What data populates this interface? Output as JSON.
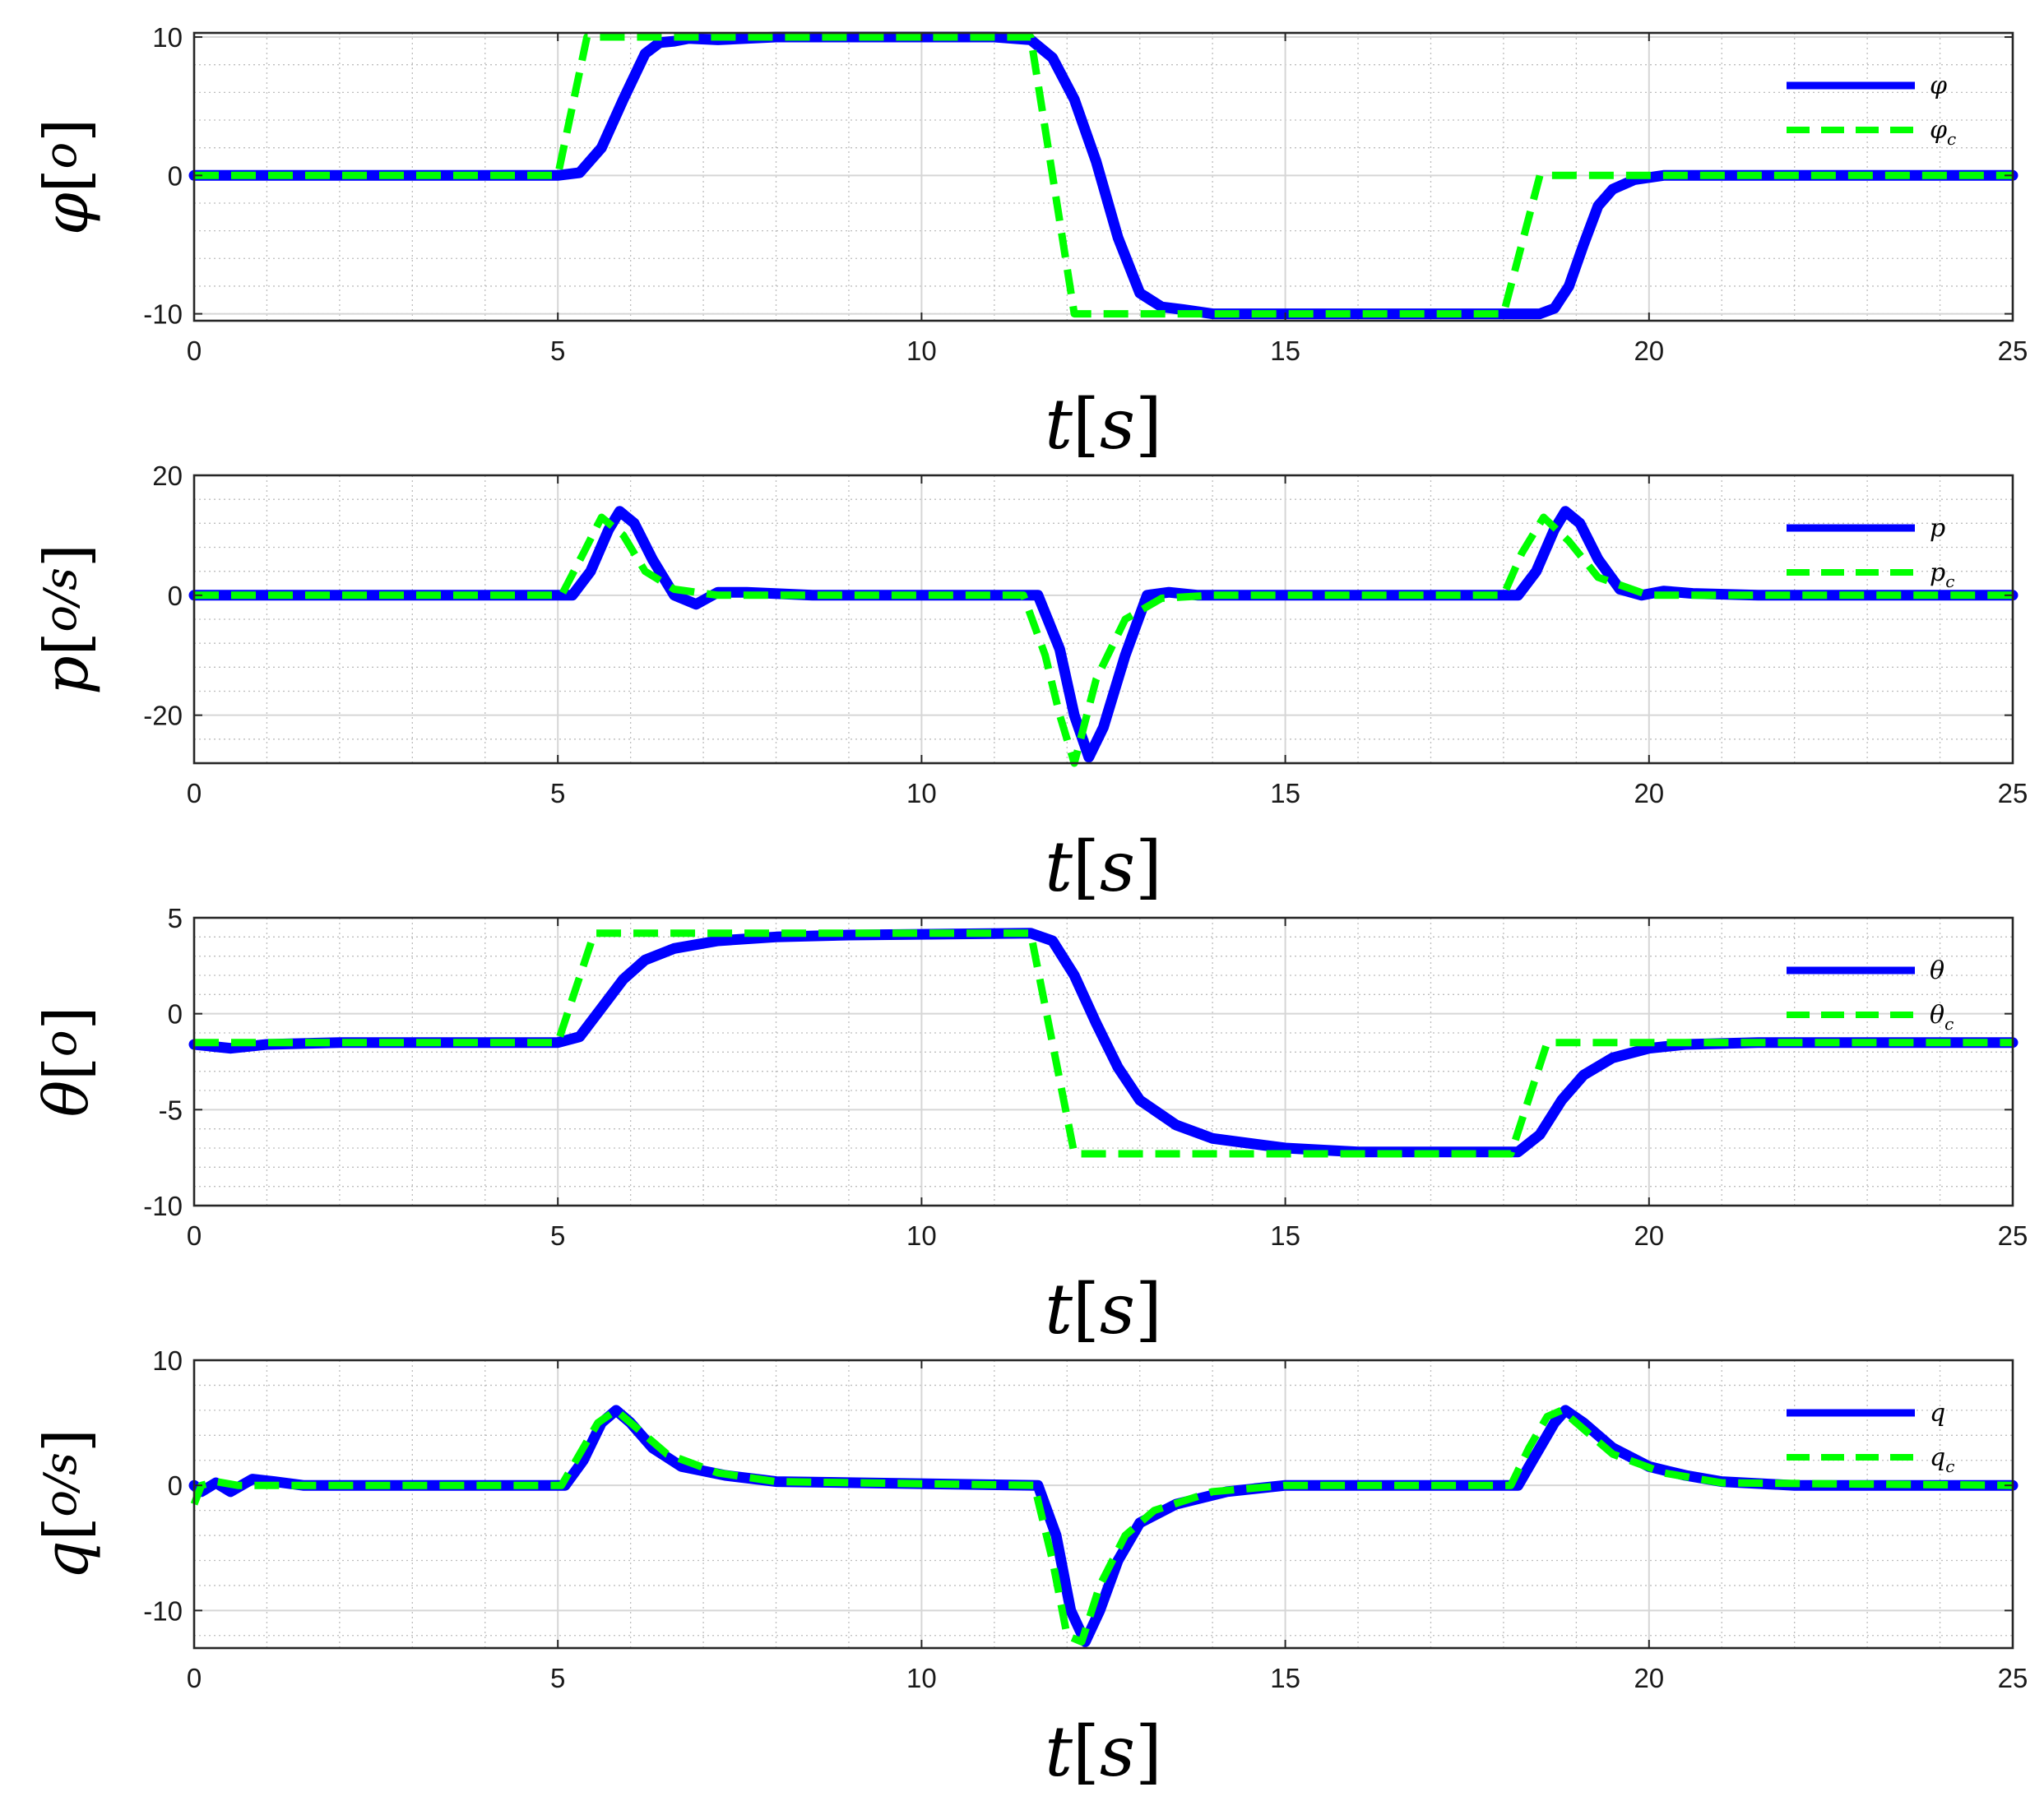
{
  "chart_data": [
    {
      "type": "line",
      "x_label": "t",
      "x_unit": "s",
      "x_label_text": "t[s]",
      "y_label": "φ",
      "y_unit": "o",
      "y_label_text": "φ[o]",
      "xlim": [
        0,
        25
      ],
      "ylim": [
        -10.5,
        10.3
      ],
      "x_ticks": [
        0,
        5,
        10,
        15,
        20,
        25
      ],
      "x_tick_labels": [
        "0",
        "5",
        "10",
        "15",
        "20",
        "25"
      ],
      "y_ticks": [
        10,
        0,
        -10
      ],
      "y_tick_labels": [
        "10",
        "0",
        "-10"
      ],
      "grid": true,
      "minor_grid": true,
      "legend_position": "top-right",
      "series": [
        {
          "name": "φ",
          "name_sub": "",
          "color": "#0000ff",
          "style": "solid",
          "x": [
            0,
            5,
            5.3,
            5.6,
            5.9,
            6.2,
            6.4,
            6.6,
            6.8,
            7.2,
            8,
            11,
            11.5,
            11.8,
            12.1,
            12.4,
            12.7,
            13,
            13.3,
            13.6,
            14,
            16,
            18.5,
            18.7,
            18.9,
            19.1,
            19.3,
            19.5,
            19.8,
            20.2,
            21,
            25
          ],
          "y": [
            0,
            0,
            0.2,
            2,
            5.5,
            8.8,
            9.6,
            9.7,
            9.9,
            9.8,
            10,
            10,
            9.8,
            8.5,
            5.5,
            1,
            -4.5,
            -8.5,
            -9.5,
            -9.7,
            -10,
            -10,
            -10,
            -9.6,
            -8,
            -5,
            -2.2,
            -1,
            -0.3,
            0,
            0,
            0
          ]
        },
        {
          "name": "φ",
          "name_sub": "c",
          "color": "#00ff00",
          "style": "dashed",
          "x": [
            0,
            5,
            5.4,
            11.5,
            12.1,
            18,
            18.5,
            25
          ],
          "y": [
            0,
            0,
            10,
            10,
            -10,
            -10,
            0,
            0
          ]
        }
      ]
    },
    {
      "type": "line",
      "x_label": "t",
      "x_unit": "s",
      "x_label_text": "t[s]",
      "y_label": "p",
      "y_unit": "o/s",
      "y_label_text": "p[o/s]",
      "xlim": [
        0,
        25
      ],
      "ylim": [
        -28,
        20
      ],
      "x_ticks": [
        0,
        5,
        10,
        15,
        20,
        25
      ],
      "x_tick_labels": [
        "0",
        "5",
        "10",
        "15",
        "20",
        "25"
      ],
      "y_ticks": [
        20,
        0,
        -20
      ],
      "y_tick_labels": [
        "20",
        "0",
        "-20"
      ],
      "grid": true,
      "minor_grid": true,
      "legend_position": "top-right",
      "series": [
        {
          "name": "p",
          "name_sub": "",
          "color": "#0000ff",
          "style": "solid",
          "x": [
            0,
            5.2,
            5.45,
            5.7,
            5.85,
            6.05,
            6.3,
            6.6,
            6.9,
            7.2,
            7.6,
            8.5,
            11.6,
            11.9,
            12.1,
            12.3,
            12.5,
            12.8,
            13.1,
            13.4,
            13.8,
            14.5,
            18.2,
            18.45,
            18.7,
            18.85,
            19.05,
            19.3,
            19.6,
            19.9,
            20.2,
            20.6,
            21.5,
            25
          ],
          "y": [
            0,
            0,
            4,
            11,
            14,
            12,
            6,
            0,
            -1.5,
            0.5,
            0.5,
            0,
            0,
            -9,
            -20,
            -27,
            -22,
            -10,
            0,
            0.5,
            0,
            0,
            0,
            4,
            11,
            14,
            12,
            6,
            1,
            0,
            0.7,
            0.3,
            0,
            0
          ]
        },
        {
          "name": "p",
          "name_sub": "c",
          "color": "#00ff00",
          "style": "dashed",
          "x": [
            0,
            5.05,
            5.35,
            5.6,
            5.9,
            6.2,
            6.6,
            7.2,
            11.4,
            11.7,
            11.9,
            12.1,
            12.4,
            12.8,
            13.3,
            14,
            18,
            18.25,
            18.55,
            18.9,
            19.3,
            20,
            25
          ],
          "y": [
            0,
            0,
            7,
            13,
            10,
            4,
            1,
            0,
            0,
            -10,
            -20,
            -28,
            -14,
            -4,
            -0.5,
            0,
            0,
            7,
            13,
            9,
            3,
            0,
            0
          ]
        }
      ]
    },
    {
      "type": "line",
      "x_label": "t",
      "x_unit": "s",
      "x_label_text": "t[s]",
      "y_label": "θ",
      "y_unit": "o",
      "y_label_text": "θ[o]",
      "xlim": [
        0,
        25
      ],
      "ylim": [
        -10,
        5
      ],
      "x_ticks": [
        0,
        5,
        10,
        15,
        20,
        25
      ],
      "x_tick_labels": [
        "0",
        "5",
        "10",
        "15",
        "20",
        "25"
      ],
      "y_ticks": [
        5,
        0,
        -5,
        -10
      ],
      "y_tick_labels": [
        "5",
        "0",
        "-5",
        "-10"
      ],
      "grid": true,
      "minor_grid": true,
      "legend_position": "top-right",
      "series": [
        {
          "name": "θ",
          "name_sub": "",
          "color": "#0000ff",
          "style": "solid",
          "x": [
            0,
            0.5,
            1,
            2,
            5,
            5.3,
            5.6,
            5.9,
            6.2,
            6.6,
            7.2,
            8,
            9,
            11.5,
            11.8,
            12.1,
            12.4,
            12.7,
            13,
            13.5,
            14,
            15,
            16,
            18.2,
            18.5,
            18.8,
            19.1,
            19.5,
            20,
            20.5,
            21.5,
            25
          ],
          "y": [
            -1.6,
            -1.8,
            -1.6,
            -1.5,
            -1.5,
            -1.2,
            0.3,
            1.8,
            2.8,
            3.4,
            3.8,
            4,
            4.1,
            4.2,
            3.8,
            2,
            -0.5,
            -2.8,
            -4.5,
            -5.8,
            -6.5,
            -7,
            -7.2,
            -7.2,
            -6.3,
            -4.5,
            -3.2,
            -2.3,
            -1.8,
            -1.6,
            -1.5,
            -1.5
          ]
        },
        {
          "name": "θ",
          "name_sub": "c",
          "color": "#00ff00",
          "style": "dashed",
          "x": [
            0,
            5,
            5.5,
            11.5,
            12.1,
            18.1,
            18.6,
            25
          ],
          "y": [
            -1.5,
            -1.5,
            4.2,
            4.2,
            -7.3,
            -7.3,
            -1.5,
            -1.5
          ]
        }
      ]
    },
    {
      "type": "line",
      "x_label": "t",
      "x_unit": "s",
      "x_label_text": "t[s]",
      "y_label": "q",
      "y_unit": "o/s",
      "y_label_text": "q[o/s]",
      "xlim": [
        0,
        25
      ],
      "ylim": [
        -13,
        10
      ],
      "x_ticks": [
        0,
        5,
        10,
        15,
        20,
        25
      ],
      "x_tick_labels": [
        "0",
        "5",
        "10",
        "15",
        "20",
        "25"
      ],
      "y_ticks": [
        10,
        0,
        -10
      ],
      "y_tick_labels": [
        "10",
        "0",
        "-10"
      ],
      "grid": true,
      "minor_grid": true,
      "legend_position": "top-right",
      "series": [
        {
          "name": "q",
          "name_sub": "",
          "color": "#0000ff",
          "style": "solid",
          "x": [
            0,
            0.1,
            0.3,
            0.5,
            0.8,
            1.1,
            1.5,
            2,
            5.1,
            5.35,
            5.6,
            5.8,
            6,
            6.3,
            6.7,
            7.3,
            8,
            11.6,
            11.85,
            12.05,
            12.25,
            12.45,
            12.7,
            13,
            13.5,
            14.2,
            15,
            18.2,
            18.45,
            18.7,
            18.85,
            19.1,
            19.5,
            20,
            20.5,
            21,
            22,
            25
          ],
          "y": [
            0,
            -0.5,
            0.2,
            -0.5,
            0.5,
            0.3,
            0,
            0,
            0,
            2,
            5,
            6,
            5,
            3,
            1.5,
            0.8,
            0.3,
            0,
            -4,
            -10,
            -12.5,
            -10,
            -6,
            -3,
            -1.5,
            -0.5,
            0,
            0,
            2.5,
            5,
            6,
            5,
            3,
            1.5,
            0.8,
            0.3,
            0,
            0
          ]
        },
        {
          "name": "q",
          "name_sub": "c",
          "color": "#00ff00",
          "style": "dashed",
          "x": [
            0,
            0.1,
            0.3,
            0.6,
            1,
            5.05,
            5.3,
            5.55,
            5.8,
            6.1,
            6.5,
            7.2,
            8,
            11.55,
            11.8,
            12,
            12.2,
            12.45,
            12.8,
            13.2,
            14,
            15,
            18.1,
            18.35,
            18.6,
            18.8,
            19.1,
            19.5,
            20.2,
            21,
            25
          ],
          "y": [
            -1.5,
            0,
            0.3,
            0,
            0,
            0,
            2.5,
            5,
            6,
            4.5,
            2.5,
            1,
            0.3,
            0,
            -6,
            -12,
            -12.5,
            -8,
            -4,
            -2,
            -0.5,
            0,
            0,
            3,
            5.5,
            6,
            4.5,
            2.5,
            1,
            0.2,
            0
          ]
        }
      ]
    }
  ]
}
